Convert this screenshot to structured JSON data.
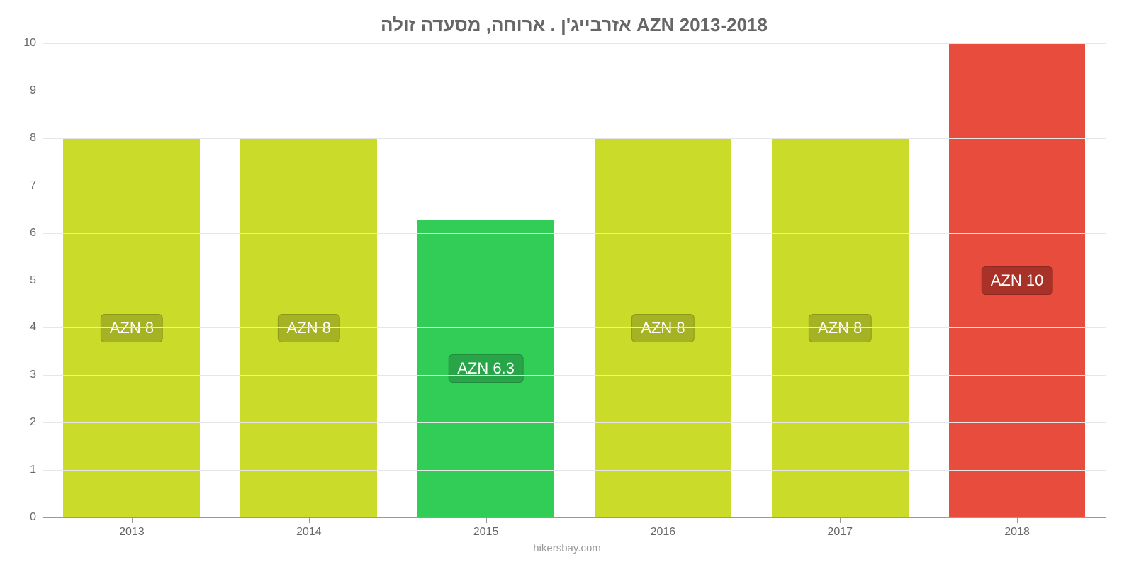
{
  "chart": {
    "type": "bar",
    "title": "אזרבייג'ן . ארוחה, מסעדה זולה AZN 2013-2018",
    "title_fontsize": 26,
    "title_color": "#666666",
    "background_color": "#ffffff",
    "grid_color": "#e6e6e6",
    "axis_color": "#999999",
    "tick_label_color": "#666666",
    "tick_fontsize": 16,
    "bar_width": 0.78,
    "ylim": [
      0,
      10
    ],
    "yticks": [
      0,
      1,
      2,
      3,
      4,
      5,
      6,
      7,
      8,
      9,
      10
    ],
    "categories": [
      "2013",
      "2014",
      "2015",
      "2016",
      "2017",
      "2018"
    ],
    "values": [
      8,
      8,
      6.3,
      8,
      8,
      10
    ],
    "bar_colors": [
      "#cbdb2a",
      "#cbdb2a",
      "#32cd57",
      "#cbdb2a",
      "#cbdb2a",
      "#e84c3d"
    ],
    "value_labels": [
      "AZN 8",
      "AZN 8",
      "AZN 6.3",
      "AZN 8",
      "AZN 8",
      "AZN 10"
    ],
    "value_label_bg": [
      "#a5b223",
      "#a5b223",
      "#28a548",
      "#a5b223",
      "#a5b223",
      "#a83228"
    ],
    "value_label_fontsize": 22,
    "value_label_color": "#ffffff",
    "source": "hikersbay.com",
    "source_color": "#999999",
    "source_fontsize": 15
  }
}
